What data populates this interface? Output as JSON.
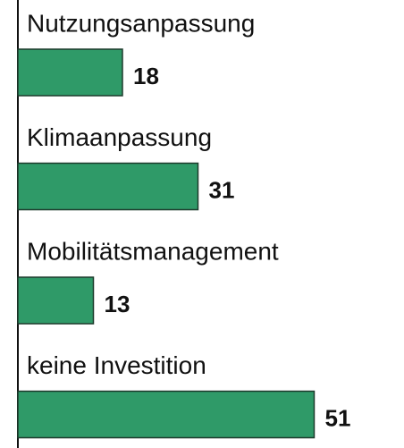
{
  "chart_data": {
    "type": "bar",
    "orientation": "horizontal",
    "categories": [
      "Nutzungsanpassung",
      "Klimaanpassung",
      "Mobilitätsmanagement",
      "keine Investition"
    ],
    "values": [
      18,
      31,
      13,
      51
    ],
    "color": "#2f9a68",
    "xlim": [
      0,
      60
    ]
  }
}
